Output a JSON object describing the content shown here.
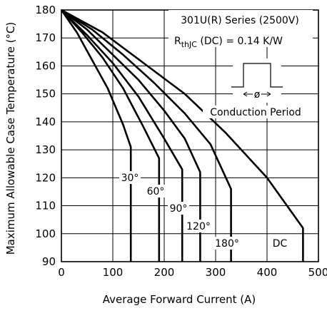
{
  "chart_data": {
    "type": "line",
    "xlabel": "Average Forward Current (A)",
    "ylabel": "Maximum Allowable Case Temperature (°C)",
    "xlim": [
      0,
      500
    ],
    "ylim": [
      90,
      180
    ],
    "x_ticks": [
      "0",
      "100",
      "200",
      "300",
      "400",
      "500"
    ],
    "y_ticks": [
      "90",
      "100",
      "110",
      "120",
      "130",
      "140",
      "150",
      "160",
      "170",
      "180"
    ],
    "grid": true,
    "annotations": {
      "series_title": "301U(R) Series (2500V)",
      "rth_prefix": "R",
      "rth_sub": "thJC",
      "rth_value": " (DC) = 0.14 K/W",
      "conduction_symbol": "ø",
      "conduction_label": "Conduction Period"
    },
    "series": [
      {
        "name": "30°",
        "x": [
          0,
          30,
          60,
          90,
          120,
          135,
          135
        ],
        "y": [
          180,
          172,
          162,
          152,
          139,
          131,
          90
        ]
      },
      {
        "name": "60°",
        "x": [
          0,
          40,
          80,
          120,
          160,
          190,
          190
        ],
        "y": [
          180,
          172,
          163,
          152,
          138,
          127,
          90
        ]
      },
      {
        "name": "90°",
        "x": [
          0,
          50,
          100,
          150,
          200,
          235,
          235
        ],
        "y": [
          180,
          171,
          161,
          149,
          134,
          123,
          90
        ]
      },
      {
        "name": "120°",
        "x": [
          0,
          50,
          100,
          150,
          200,
          240,
          270,
          270
        ],
        "y": [
          180,
          173,
          164,
          155,
          144,
          134,
          122,
          90
        ]
      },
      {
        "name": "180°",
        "x": [
          0,
          60,
          120,
          180,
          240,
          290,
          330,
          330
        ],
        "y": [
          180,
          173,
          164,
          154,
          143,
          132,
          116,
          90
        ]
      },
      {
        "name": "DC",
        "x": [
          0,
          80,
          160,
          240,
          320,
          400,
          470,
          470
        ],
        "y": [
          180,
          172,
          161,
          150,
          136,
          120,
          102,
          90
        ]
      }
    ]
  }
}
